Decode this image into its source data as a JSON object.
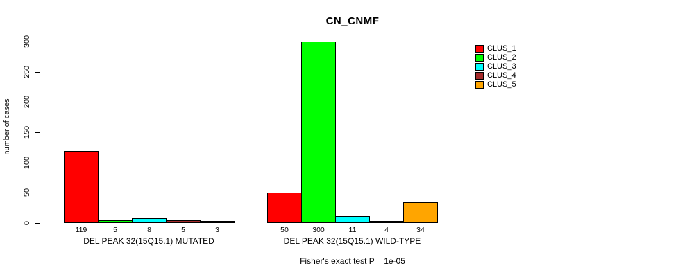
{
  "chart_data": {
    "type": "bar",
    "title": "CN_CNMF",
    "ylabel": "number of cases",
    "xlabel": "",
    "ylim": [
      0,
      300
    ],
    "yticks": [
      0,
      50,
      100,
      150,
      200,
      250,
      300
    ],
    "grid": false,
    "legend_position": "right",
    "bar_value_labels": true,
    "categories": [
      "DEL PEAK 32(15Q15.1) MUTATED",
      "DEL PEAK 32(15Q15.1) WILD-TYPE"
    ],
    "groups": [
      {
        "label": "DEL PEAK 32(15Q15.1) MUTATED",
        "values": [
          119,
          5,
          8,
          5,
          3
        ]
      },
      {
        "label": "DEL PEAK 32(15Q15.1) WILD-TYPE",
        "values": [
          50,
          300,
          11,
          4,
          34
        ]
      }
    ],
    "series": [
      {
        "name": "CLUS_1",
        "color": "#FF0000",
        "values": [
          119,
          50
        ]
      },
      {
        "name": "CLUS_2",
        "color": "#00FF00",
        "values": [
          5,
          300
        ]
      },
      {
        "name": "CLUS_3",
        "color": "#00FFFF",
        "values": [
          8,
          11
        ]
      },
      {
        "name": "CLUS_4",
        "color": "#A52A2A",
        "values": [
          5,
          4
        ]
      },
      {
        "name": "CLUS_5",
        "color": "#FFA500",
        "values": [
          3,
          34
        ]
      }
    ],
    "legend": [
      {
        "label": "CLUS_1",
        "color": "#FF0000"
      },
      {
        "label": "CLUS_2",
        "color": "#00FF00"
      },
      {
        "label": "CLUS_3",
        "color": "#00FFFF"
      },
      {
        "label": "CLUS_4",
        "color": "#A52A2A"
      },
      {
        "label": "CLUS_5",
        "color": "#FFA500"
      }
    ],
    "annotation": "Fisher's exact test P = 1e-05"
  },
  "colors": {
    "background": "#FFFFFF",
    "axis": "#000000",
    "text": "#000000"
  }
}
